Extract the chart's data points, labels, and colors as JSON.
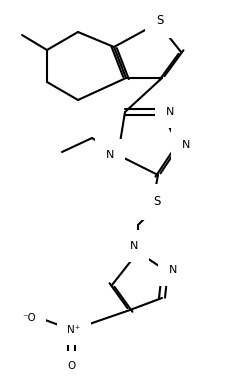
{
  "bg_color": "#ffffff",
  "line_color": "#000000",
  "lw": 1.5,
  "figsize": [
    2.28,
    3.88
  ],
  "dpi": 100,
  "xlim": [
    0,
    228
  ],
  "ylim": [
    0,
    388
  ]
}
